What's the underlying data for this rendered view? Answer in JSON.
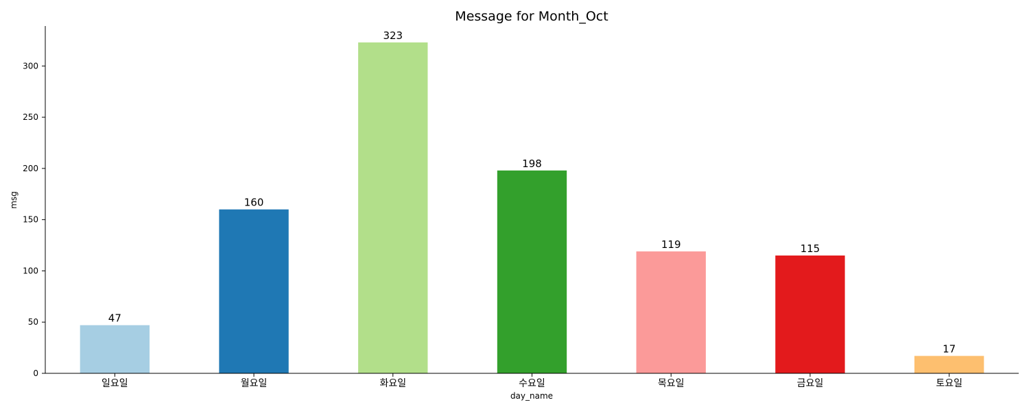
{
  "chart_data": {
    "type": "bar",
    "title": "Message for Month_Oct",
    "xlabel": "day_name",
    "ylabel": "msg",
    "categories": [
      "일요일",
      "월요일",
      "화요일",
      "수요일",
      "목요일",
      "금요일",
      "토요일"
    ],
    "values": [
      47,
      160,
      323,
      198,
      119,
      115,
      17
    ],
    "colors": [
      "#a6cee3",
      "#1f78b4",
      "#b2df8a",
      "#33a02c",
      "#fb9a99",
      "#e31a1c",
      "#fdbf6f"
    ],
    "ylim": [
      0,
      339
    ],
    "yticks": [
      0,
      50,
      100,
      150,
      200,
      250,
      300
    ],
    "grid": false,
    "legend": "none",
    "data_labels": true
  }
}
